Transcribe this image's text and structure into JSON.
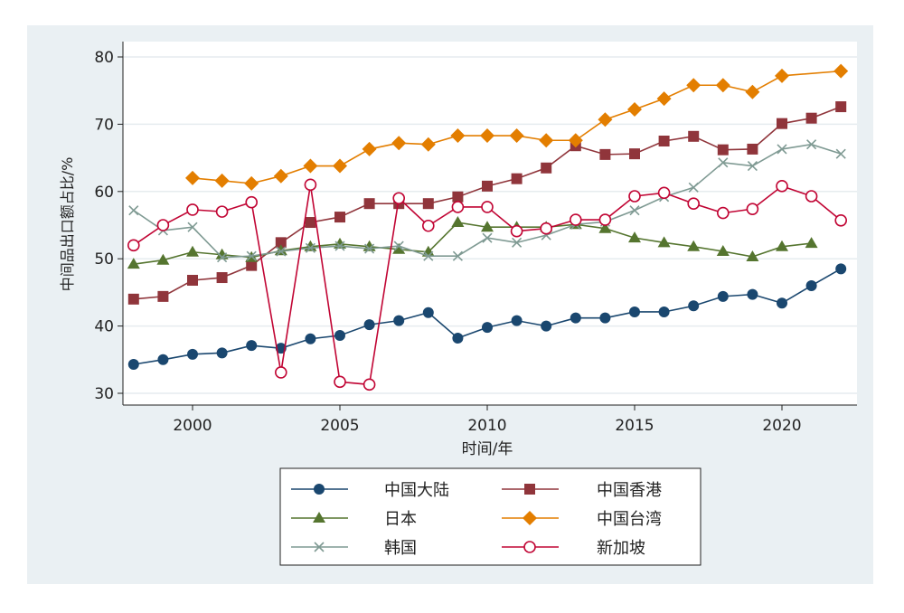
{
  "chart_data": {
    "type": "line",
    "title": "",
    "xlabel": "时间/年",
    "ylabel": "中间品出口额占比/%",
    "xlim": [
      1998,
      2022
    ],
    "ylim": [
      30,
      80
    ],
    "x_ticks": [
      2000,
      2005,
      2010,
      2015,
      2020
    ],
    "y_ticks": [
      30,
      40,
      50,
      60,
      70,
      80
    ],
    "grid": true,
    "legend_position": "bottom",
    "x": [
      1998,
      1999,
      2000,
      2001,
      2002,
      2003,
      2004,
      2005,
      2006,
      2007,
      2008,
      2009,
      2010,
      2011,
      2012,
      2013,
      2014,
      2015,
      2016,
      2017,
      2018,
      2019,
      2020,
      2021,
      2022
    ],
    "series": [
      {
        "name": "中国大陆",
        "color": "#1a476f",
        "marker": "circle",
        "values": [
          34.3,
          35.0,
          35.8,
          36.0,
          37.1,
          36.7,
          38.1,
          38.6,
          40.2,
          40.8,
          42.0,
          38.2,
          39.8,
          40.8,
          40.0,
          41.2,
          41.2,
          42.1,
          42.1,
          43.0,
          44.4,
          44.7,
          43.4,
          46.0,
          48.5
        ]
      },
      {
        "name": "中国香港",
        "color": "#90353b",
        "marker": "square",
        "values": [
          44.0,
          44.4,
          46.8,
          47.2,
          49.0,
          52.4,
          55.4,
          56.2,
          58.2,
          58.2,
          58.2,
          59.2,
          60.8,
          61.9,
          63.5,
          66.8,
          65.5,
          65.6,
          67.5,
          68.2,
          66.2,
          66.3,
          70.1,
          70.9,
          72.6
        ]
      },
      {
        "name": "日本",
        "color": "#55752f",
        "marker": "triangle",
        "values": [
          49.2,
          49.8,
          51.0,
          50.6,
          50.2,
          51.2,
          51.8,
          52.2,
          51.8,
          51.4,
          51.0,
          55.4,
          54.7,
          54.7,
          54.7,
          55.1,
          54.5,
          53.1,
          52.4,
          51.8,
          51.1,
          50.3,
          51.8,
          52.3,
          null
        ]
      },
      {
        "name": "中国台湾",
        "color": "#e37e00",
        "marker": "diamond",
        "values": [
          null,
          null,
          62.0,
          61.6,
          61.2,
          62.3,
          63.8,
          63.8,
          66.3,
          67.2,
          67.0,
          68.3,
          68.3,
          68.3,
          67.6,
          67.6,
          70.7,
          72.2,
          73.8,
          75.8,
          75.8,
          74.8,
          77.2,
          null,
          77.9
        ]
      },
      {
        "name": "韩国",
        "color": "#7f9a93",
        "marker": "x",
        "values": [
          57.2,
          54.2,
          54.7,
          50.2,
          50.4,
          51.1,
          51.6,
          51.9,
          51.5,
          51.9,
          50.4,
          50.4,
          53.1,
          52.4,
          53.5,
          55.1,
          55.5,
          57.2,
          59.2,
          60.6,
          64.3,
          63.8,
          66.3,
          67.0,
          65.6
        ]
      },
      {
        "name": "新加坡",
        "color": "#c10534",
        "marker": "hollow-circle",
        "values": [
          52.0,
          55.0,
          57.3,
          57.0,
          58.4,
          33.1,
          61.0,
          31.7,
          31.3,
          59.0,
          54.9,
          57.7,
          57.7,
          54.1,
          54.5,
          55.8,
          55.8,
          59.3,
          59.8,
          58.2,
          56.8,
          57.4,
          60.8,
          59.3,
          55.7
        ]
      }
    ]
  }
}
